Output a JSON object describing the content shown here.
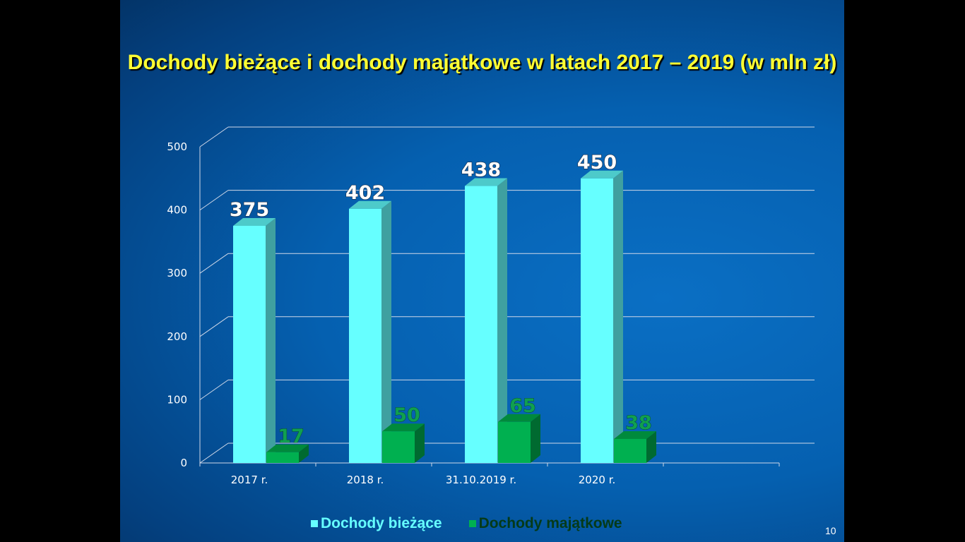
{
  "chart_data": {
    "type": "bar",
    "title": "Dochody bieżące i dochody majątkowe w latach 2017 – 2019 (w mln zł)",
    "categories": [
      "2017 r.",
      "2018 r.",
      "31.10.2019 r.",
      "2020 r."
    ],
    "series": [
      {
        "name": "Dochody bieżące",
        "values": [
          375,
          402,
          438,
          450
        ],
        "color": "#66ffff"
      },
      {
        "name": "Dochody majątkowe",
        "values": [
          17,
          50,
          65,
          38
        ],
        "color": "#00b050"
      }
    ],
    "ylim": [
      0,
      500
    ],
    "yticks": [
      0,
      100,
      200,
      300,
      400,
      500
    ],
    "grid": true,
    "three_d": true,
    "legend_position": "bottom",
    "data_labels": true
  },
  "slide": {
    "page_number": "10",
    "title_color": "#ffff33"
  }
}
